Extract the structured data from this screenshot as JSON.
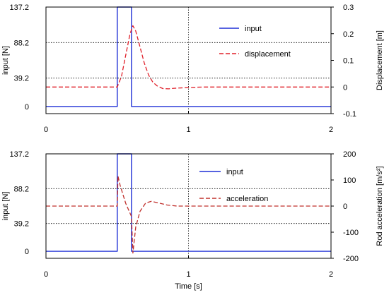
{
  "chart_data": [
    {
      "type": "line",
      "xlabel": "",
      "xlim": [
        0,
        2
      ],
      "x_ticks": [
        "0",
        "1",
        "2"
      ],
      "ylabel_left": "input [N]",
      "ylim_left": [
        -9.8,
        137.2
      ],
      "y_ticks_left": [
        "0",
        "39.2",
        "88.2",
        "137.2"
      ],
      "ylabel_right": "Displacement [m]",
      "ylim_right": [
        -0.1,
        0.3
      ],
      "y_ticks_right": [
        "-0.1",
        "0",
        "0.1",
        "0.2",
        "0.3"
      ],
      "grid": "dotted, x = 1 and left-axis ticks",
      "legend": "right, inside plot",
      "series": [
        {
          "name": "input",
          "axis": "left",
          "color": "#1f2fd6",
          "style": "solid",
          "x": [
            0,
            0.5,
            0.5,
            0.6,
            0.6,
            2
          ],
          "y": [
            0,
            0,
            137.2,
            137.2,
            0,
            0
          ]
        },
        {
          "name": "displacement",
          "axis": "right",
          "color": "#e0202a",
          "style": "dashed",
          "x": [
            0,
            0.5,
            0.53,
            0.56,
            0.59,
            0.61,
            0.63,
            0.66,
            0.69,
            0.72,
            0.75,
            0.78,
            0.82,
            0.86,
            0.9,
            1.0,
            1.1,
            2.0
          ],
          "y": [
            0.0,
            0.0,
            0.04,
            0.12,
            0.2,
            0.23,
            0.21,
            0.15,
            0.09,
            0.045,
            0.018,
            0.004,
            -0.006,
            -0.007,
            -0.005,
            -0.002,
            0.0,
            0.0
          ]
        }
      ]
    },
    {
      "type": "line",
      "xlabel": "Time [s]",
      "xlim": [
        0,
        2
      ],
      "x_ticks": [
        "0",
        "1",
        "2"
      ],
      "ylabel_left": "input [N]",
      "ylim_left": [
        -9.8,
        137.2
      ],
      "y_ticks_left": [
        "0",
        "39.2",
        "88.2",
        "137.2"
      ],
      "ylabel_right": "Rod acceleration  [m/s²]",
      "ylim_right": [
        -200,
        200
      ],
      "y_ticks_right": [
        "-200",
        "-100",
        "0",
        "100",
        "200"
      ],
      "grid": "dotted, x = 1 and left-axis ticks",
      "legend": "right, inside plot",
      "series": [
        {
          "name": "input",
          "axis": "left",
          "color": "#1f2fd6",
          "style": "solid",
          "x": [
            0,
            0.5,
            0.5,
            0.6,
            0.6,
            2
          ],
          "y": [
            0,
            0,
            137.2,
            137.2,
            0,
            0
          ]
        },
        {
          "name": "acceleration",
          "axis": "right",
          "color": "#c0302c",
          "style": "dashed",
          "x": [
            0,
            0.5,
            0.505,
            0.52,
            0.54,
            0.56,
            0.58,
            0.6,
            0.6,
            0.61,
            0.63,
            0.66,
            0.7,
            0.74,
            0.79,
            0.85,
            0.92,
            1.0,
            1.1,
            2.0
          ],
          "y": [
            0,
            0,
            115,
            80,
            45,
            10,
            -15,
            -40,
            -40,
            -180,
            -80,
            -20,
            12,
            18,
            12,
            4,
            0,
            0,
            0,
            0
          ]
        }
      ]
    }
  ]
}
